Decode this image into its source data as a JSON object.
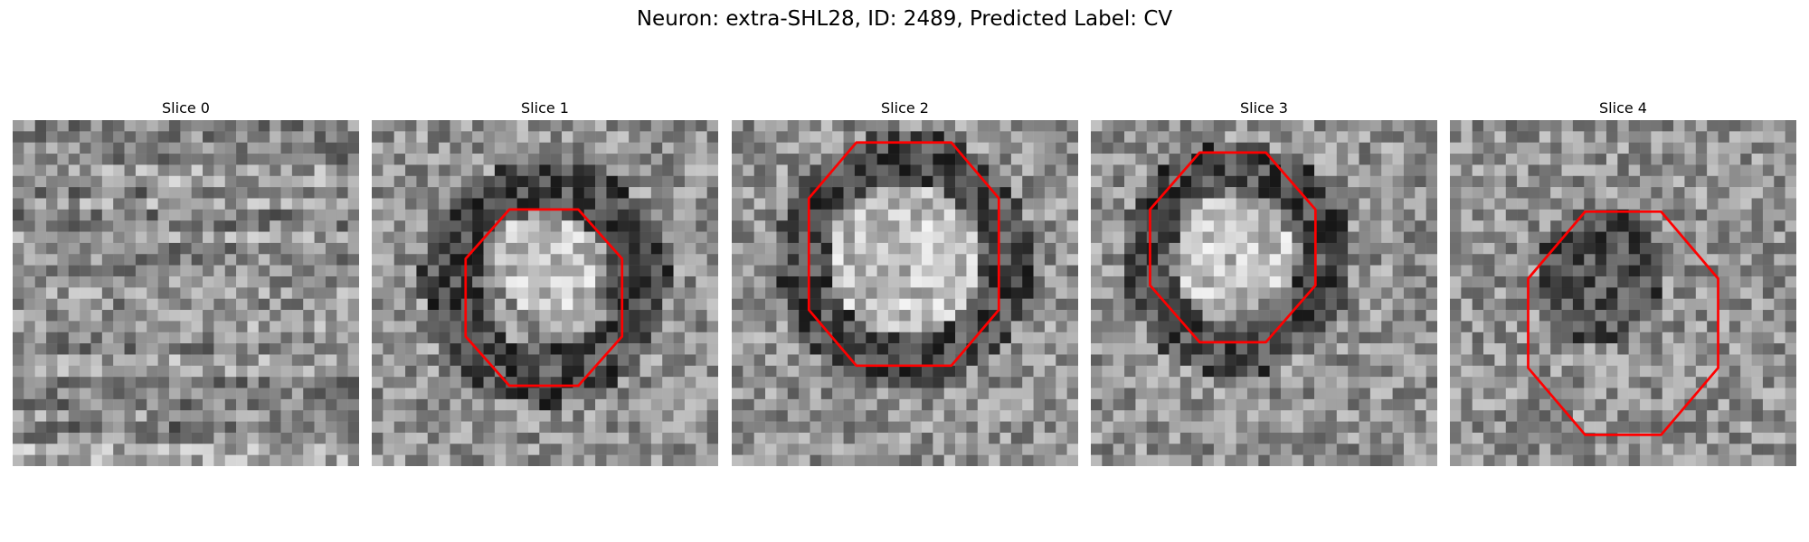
{
  "figure": {
    "title": "Neuron: extra-SHL28, ID: 2489, Predicted Label: CV",
    "outline_color": "#ff0000",
    "colormap": "gray"
  },
  "slices": [
    {
      "label": "Slice 0",
      "has_outline": false,
      "pattern": "horizontal-streaks"
    },
    {
      "label": "Slice 1",
      "has_outline": true,
      "pattern": "dark-ring-bright-core"
    },
    {
      "label": "Slice 2",
      "has_outline": true,
      "pattern": "dark-ring-bright-core"
    },
    {
      "label": "Slice 3",
      "has_outline": true,
      "pattern": "dark-ring-bright-core"
    },
    {
      "label": "Slice 4",
      "has_outline": true,
      "pattern": "dark-cluster"
    }
  ]
}
